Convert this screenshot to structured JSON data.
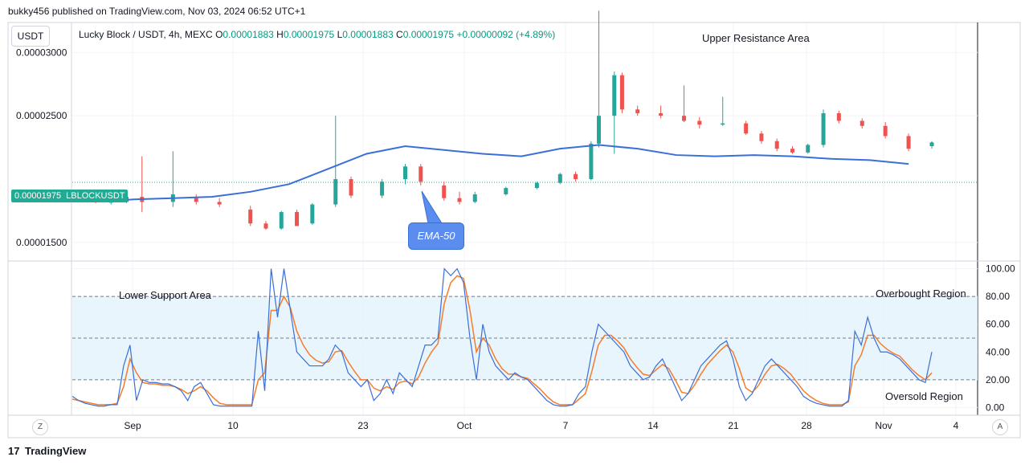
{
  "header": {
    "published": "bukky456 published on TradingView.com, Nov 03, 2024 06:52 UTC+1"
  },
  "legend": {
    "symbol": "Lucky Block / USDT, 4h, MEXC",
    "o_label": "O",
    "o_value": "0.00001883",
    "h_label": "H",
    "h_value": "0.00001975",
    "l_label": "L",
    "l_value": "0.00001883",
    "c_label": "C",
    "c_value": "0.00001975",
    "change": "+0.00000092 (+4.89%)"
  },
  "currency_button": "USDT",
  "price_tag": {
    "value": "0.00001975",
    "symbol": "LBLOCKUSDT"
  },
  "annotations": {
    "upper_resistance": "Upper Resistance Area",
    "lower_support": "Lower Support Area",
    "overbought": "Overbought Region",
    "oversold": "Oversold Region",
    "ema": "EMA-50"
  },
  "axis_buttons": {
    "left": "Z",
    "right": "A"
  },
  "footer": {
    "brand": "TradingView",
    "logo_glyph": "17"
  },
  "colors": {
    "up": "#26a69a",
    "down": "#ef5350",
    "ema": "#3a6fd8",
    "k_line": "#3a6fd8",
    "d_line": "#f57c2c",
    "band": "#e3f2fd"
  },
  "chart_data": [
    {
      "type": "candlestick",
      "yaxis_ticks": [
        "0.00003000",
        "0.00002500",
        "0.00001500"
      ],
      "yaxis_tick_values": [
        3e-05,
        2.5e-05,
        1.5e-05
      ],
      "ylim": [
        1.36e-05,
        3.23e-05
      ],
      "xaxis_ticks": [
        "Sep",
        "10",
        "23",
        "Oct",
        "7",
        "14",
        "21",
        "28",
        "Nov",
        "4"
      ],
      "current_price": 1.975e-05,
      "ema_50": [
        [
          0,
          1.83e-05
        ],
        [
          8,
          1.825e-05
        ],
        [
          16,
          1.84e-05
        ],
        [
          26,
          1.85e-05
        ],
        [
          36,
          1.86e-05
        ],
        [
          46,
          1.9e-05
        ],
        [
          56,
          1.96e-05
        ],
        [
          66,
          2.08e-05
        ],
        [
          76,
          2.2e-05
        ],
        [
          86,
          2.26e-05
        ],
        [
          96,
          2.23e-05
        ],
        [
          106,
          2.2e-05
        ],
        [
          116,
          2.18e-05
        ],
        [
          126,
          2.24e-05
        ],
        [
          136,
          2.27e-05
        ],
        [
          146,
          2.24e-05
        ],
        [
          156,
          2.19e-05
        ],
        [
          166,
          2.18e-05
        ],
        [
          176,
          2.19e-05
        ],
        [
          186,
          2.18e-05
        ],
        [
          196,
          2.16e-05
        ],
        [
          206,
          2.15e-05
        ],
        [
          216,
          2.12e-05
        ]
      ],
      "candles": [
        [
          0,
          1.83e-05,
          1.84e-05,
          1.82e-05,
          1.83e-05
        ],
        [
          6,
          1.83e-05,
          1.84e-05,
          1.81e-05,
          1.82e-05
        ],
        [
          10,
          1.82e-05,
          1.84e-05,
          1.8e-05,
          1.82e-05
        ],
        [
          14,
          1.82e-05,
          1.87e-05,
          1.81e-05,
          1.86e-05
        ],
        [
          18,
          1.86e-05,
          2.18e-05,
          1.74e-05,
          1.82e-05
        ],
        [
          26,
          1.82e-05,
          2.22e-05,
          1.78e-05,
          1.88e-05
        ],
        [
          32,
          1.85e-05,
          1.88e-05,
          1.8e-05,
          1.82e-05
        ],
        [
          38,
          1.82e-05,
          1.85e-05,
          1.78e-05,
          1.8e-05
        ],
        [
          46,
          1.76e-05,
          1.79e-05,
          1.63e-05,
          1.65e-05
        ],
        [
          50,
          1.65e-05,
          1.67e-05,
          1.6e-05,
          1.61e-05
        ],
        [
          54,
          1.61e-05,
          1.75e-05,
          1.6e-05,
          1.74e-05
        ],
        [
          58,
          1.74e-05,
          1.76e-05,
          1.63e-05,
          1.63e-05
        ],
        [
          62,
          1.65e-05,
          1.81e-05,
          1.64e-05,
          1.8e-05
        ],
        [
          68,
          1.8e-05,
          2.5e-05,
          1.78e-05,
          2e-05
        ],
        [
          72,
          2e-05,
          2.02e-05,
          1.85e-05,
          1.87e-05
        ],
        [
          80,
          1.87e-05,
          2e-05,
          1.85e-05,
          1.98e-05
        ],
        [
          86,
          2e-05,
          2.12e-05,
          1.96e-05,
          2.1e-05
        ],
        [
          90,
          2.1e-05,
          2.12e-05,
          1.95e-05,
          1.98e-05
        ],
        [
          96,
          1.95e-05,
          1.98e-05,
          1.83e-05,
          1.85e-05
        ],
        [
          100,
          1.85e-05,
          1.9e-05,
          1.8e-05,
          1.82e-05
        ],
        [
          104,
          1.82e-05,
          1.9e-05,
          1.81e-05,
          1.88e-05
        ],
        [
          112,
          1.88e-05,
          1.94e-05,
          1.87e-05,
          1.93e-05
        ],
        [
          120,
          1.93e-05,
          1.98e-05,
          1.92e-05,
          1.97e-05
        ],
        [
          126,
          1.97e-05,
          2.05e-05,
          1.96e-05,
          2.04e-05
        ],
        [
          130,
          2.04e-05,
          2.06e-05,
          1.98e-05,
          2e-05
        ],
        [
          134,
          2e-05,
          2.3e-05,
          1.99e-05,
          2.28e-05
        ],
        [
          136,
          2.28e-05,
          3.33e-05,
          2.25e-05,
          2.5e-05
        ],
        [
          140,
          2.5e-05,
          2.85e-05,
          2.2e-05,
          2.82e-05
        ],
        [
          142,
          2.82e-05,
          2.84e-05,
          2.52e-05,
          2.55e-05
        ],
        [
          146,
          2.55e-05,
          2.58e-05,
          2.5e-05,
          2.52e-05
        ],
        [
          152,
          2.52e-05,
          2.58e-05,
          2.48e-05,
          2.5e-05
        ],
        [
          158,
          2.5e-05,
          2.74e-05,
          2.45e-05,
          2.46e-05
        ],
        [
          162,
          2.46e-05,
          2.49e-05,
          2.4e-05,
          2.43e-05
        ],
        [
          168,
          2.43e-05,
          2.65e-05,
          2.42e-05,
          2.44e-05
        ],
        [
          174,
          2.44e-05,
          2.46e-05,
          2.35e-05,
          2.36e-05
        ],
        [
          178,
          2.36e-05,
          2.38e-05,
          2.28e-05,
          2.3e-05
        ],
        [
          182,
          2.3e-05,
          2.32e-05,
          2.22e-05,
          2.24e-05
        ],
        [
          186,
          2.24e-05,
          2.26e-05,
          2.2e-05,
          2.21e-05
        ],
        [
          190,
          2.21e-05,
          2.28e-05,
          2.2e-05,
          2.27e-05
        ],
        [
          194,
          2.27e-05,
          2.55e-05,
          2.25e-05,
          2.52e-05
        ],
        [
          198,
          2.52e-05,
          2.54e-05,
          2.44e-05,
          2.46e-05
        ],
        [
          204,
          2.46e-05,
          2.48e-05,
          2.4e-05,
          2.42e-05
        ],
        [
          210,
          2.42e-05,
          2.45e-05,
          2.32e-05,
          2.34e-05
        ],
        [
          216,
          2.34e-05,
          2.36e-05,
          2.22e-05,
          2.24e-05
        ],
        [
          222,
          2.26e-05,
          2.3e-05,
          2.24e-05,
          2.29e-05
        ]
      ]
    },
    {
      "type": "line",
      "indicator": "stochastic",
      "yaxis_ticks": [
        "100.00",
        "80.00",
        "60.00",
        "40.00",
        "20.00",
        "0.00"
      ],
      "ylim": [
        -5,
        105
      ],
      "levels": [
        80,
        50,
        20
      ],
      "series": [
        {
          "values": [
            8,
            5,
            3,
            2,
            1,
            1,
            2,
            2,
            30,
            45,
            5,
            20,
            18,
            18,
            17,
            17,
            15,
            12,
            5,
            15,
            18,
            10,
            2,
            1,
            1,
            1,
            1,
            1,
            1,
            55,
            12,
            100,
            65,
            100,
            70,
            40,
            35,
            30,
            30,
            30,
            35,
            45,
            40,
            25,
            20,
            15,
            20,
            5,
            10,
            20,
            10,
            25,
            20,
            15,
            30,
            45,
            45,
            50,
            100,
            95,
            100,
            90,
            50,
            20,
            60,
            40,
            30,
            25,
            20,
            25,
            22,
            20,
            15,
            10,
            5,
            2,
            1,
            1,
            2,
            10,
            15,
            40,
            60,
            55,
            50,
            45,
            40,
            30,
            25,
            20,
            22,
            30,
            35,
            25,
            15,
            5,
            10,
            20,
            30,
            35,
            40,
            45,
            48,
            35,
            15,
            5,
            10,
            20,
            30,
            35,
            30,
            25,
            20,
            15,
            8,
            5,
            3,
            2,
            1,
            1,
            1,
            5,
            55,
            45,
            65,
            50,
            40,
            40,
            38,
            35,
            30,
            25,
            20,
            18,
            40
          ]
        },
        {
          "values": [
            6,
            5,
            4,
            3,
            2,
            2,
            2,
            3,
            15,
            35,
            25,
            18,
            17,
            17,
            16,
            16,
            15,
            13,
            10,
            12,
            15,
            12,
            7,
            3,
            2,
            2,
            2,
            2,
            2,
            20,
            25,
            70,
            70,
            80,
            72,
            55,
            45,
            38,
            34,
            32,
            33,
            40,
            41,
            33,
            26,
            20,
            20,
            14,
            12,
            15,
            13,
            18,
            19,
            17,
            22,
            32,
            40,
            46,
            75,
            90,
            95,
            93,
            70,
            40,
            50,
            45,
            35,
            28,
            24,
            24,
            22,
            21,
            17,
            13,
            8,
            4,
            2,
            2,
            2,
            6,
            10,
            26,
            45,
            52,
            52,
            48,
            43,
            35,
            29,
            24,
            23,
            27,
            31,
            28,
            20,
            11,
            10,
            16,
            24,
            31,
            36,
            41,
            45,
            40,
            28,
            14,
            11,
            16,
            24,
            30,
            31,
            28,
            24,
            18,
            12,
            8,
            5,
            3,
            2,
            2,
            2,
            4,
            30,
            38,
            52,
            52,
            46,
            42,
            39,
            37,
            32,
            27,
            23,
            20,
            25
          ]
        }
      ]
    }
  ]
}
